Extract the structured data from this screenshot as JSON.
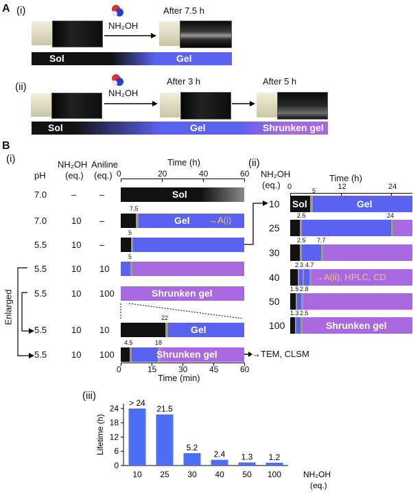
{
  "colors": {
    "sol": "#111111",
    "gel": "#5b62f0",
    "shrunken": "#a868e0",
    "chart_bar": "#4c6ef5"
  },
  "panelA": {
    "label": "A",
    "i": {
      "label": "(i)",
      "reagent": "NH₂OH",
      "after": "After 7.5 h",
      "bar_sol": "Sol",
      "bar_gel": "Gel"
    },
    "ii": {
      "label": "(ii)",
      "reagent": "NH₂OH",
      "after1": "After 3 h",
      "after2": "After 5 h",
      "bar_sol": "Sol",
      "bar_gel": "Gel",
      "bar_shrunken": "Shrunken gel"
    }
  },
  "panelB": {
    "label": "B",
    "i": {
      "label": "(i)",
      "headers": {
        "ph": "pH",
        "nh2oh": "NH₂OH",
        "nh2oh_unit": "(eq.)",
        "aniline": "Aniline",
        "aniline_unit": "(eq.)",
        "time": "Time (h)",
        "time_min": "Time (min)"
      },
      "axis_h": [
        "0",
        "20",
        "40",
        "60"
      ],
      "axis_min": [
        "0",
        "15",
        "30",
        "45",
        "60"
      ],
      "enlarged": "Enlarged",
      "rows": [
        {
          "ph": "7.0",
          "nh2oh": "–",
          "aniline": "–",
          "label": "Sol",
          "marker": ""
        },
        {
          "ph": "7.0",
          "nh2oh": "10",
          "aniline": "–",
          "label": "Gel",
          "note": "→A(i)",
          "marker": "7.5"
        },
        {
          "ph": "5.5",
          "nh2oh": "10",
          "aniline": "–",
          "label": "",
          "marker": "5"
        },
        {
          "ph": "5.5",
          "nh2oh": "10",
          "aniline": "10",
          "label": "",
          "marker": "5"
        },
        {
          "ph": "5.5",
          "nh2oh": "10",
          "aniline": "100",
          "label": "Shrunken gel",
          "marker": ""
        },
        {
          "ph": "5.5",
          "nh2oh": "10",
          "aniline": "10",
          "label": "Gel",
          "marker": "22"
        },
        {
          "ph": "5.5",
          "nh2oh": "10",
          "aniline": "100",
          "label": "Shrunken gel",
          "marker": "4.5",
          "marker2": "18",
          "note": "→TEM, CLSM"
        }
      ]
    },
    "ii": {
      "label": "(ii)",
      "headers": {
        "nh2oh": "NH₂OH",
        "unit": "(eq.)",
        "time": "Time (h)"
      },
      "axis": [
        "0",
        "12",
        "24"
      ],
      "rows": [
        {
          "nh2oh": "10",
          "m1": "5",
          "m2": "",
          "label_sol": "Sol",
          "label": "Gel"
        },
        {
          "nh2oh": "25",
          "m1": "2.5",
          "m2": "24",
          "label": ""
        },
        {
          "nh2oh": "30",
          "m1": "2.5",
          "m2": "7.7",
          "label": ""
        },
        {
          "nh2oh": "40",
          "m1": "2",
          "m2": "3",
          "m3": "4.7",
          "note": "→A(ii), HPLC, CD"
        },
        {
          "nh2oh": "50",
          "m1": "1.5",
          "m2": "2.8",
          "label": ""
        },
        {
          "nh2oh": "100",
          "m1": "1.3",
          "m2": "2.5",
          "label": "Shrunken gel"
        }
      ]
    },
    "iii": {
      "label": "(iii)"
    }
  },
  "chart_data": {
    "type": "bar",
    "categories": [
      "10",
      "25",
      "30",
      "40",
      "50",
      "100"
    ],
    "values": [
      24,
      21.5,
      5.2,
      2.4,
      1.3,
      1.2
    ],
    "data_labels": [
      "> 24",
      "21.5",
      "5.2",
      "2.4",
      "1.3",
      "1.2"
    ],
    "ylabel": "Lifetime (h)",
    "xlabel": "NH₂OH",
    "xlabel_unit": "(eq.)",
    "yticks": [
      "0",
      "6",
      "12",
      "18",
      "24"
    ],
    "ylim": [
      0,
      26
    ]
  }
}
